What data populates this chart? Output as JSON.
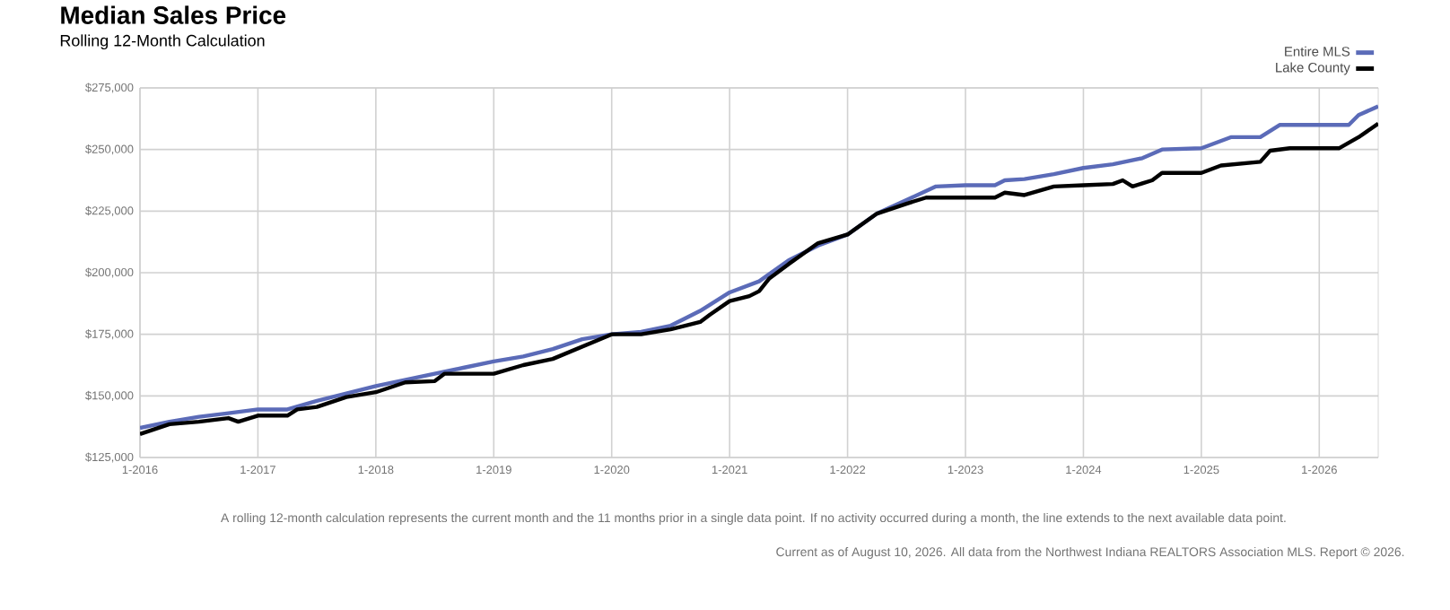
{
  "chart_data": {
    "type": "line",
    "title": "Median Sales Price",
    "subtitle": "Rolling 12-Month Calculation",
    "series": [
      {
        "name": "Entire MLS",
        "color": "#5b6bb8",
        "x": [
          "2016-01",
          "2016-04",
          "2016-07",
          "2016-10",
          "2017-01",
          "2017-04",
          "2017-07",
          "2017-10",
          "2018-01",
          "2018-04",
          "2018-07",
          "2018-10",
          "2019-01",
          "2019-04",
          "2019-07",
          "2019-10",
          "2020-01",
          "2020-04",
          "2020-07",
          "2020-10",
          "2021-01",
          "2021-04",
          "2021-07",
          "2021-10",
          "2022-01",
          "2022-04",
          "2022-07",
          "2022-10",
          "2023-01",
          "2023-04",
          "2023-05",
          "2023-07",
          "2023-10",
          "2024-01",
          "2024-04",
          "2024-07",
          "2024-09",
          "2025-01",
          "2025-04",
          "2025-07",
          "2025-09",
          "2026-01",
          "2026-04",
          "2026-05",
          "2026-07"
        ],
        "values": [
          137000,
          139500,
          141500,
          143000,
          144500,
          144500,
          148000,
          151000,
          154000,
          156500,
          159000,
          161500,
          164000,
          166000,
          169000,
          173000,
          175000,
          176000,
          178500,
          184500,
          192000,
          196500,
          205000,
          211000,
          215500,
          224000,
          229500,
          235000,
          235500,
          235500,
          237500,
          238000,
          240000,
          242500,
          244000,
          246500,
          250000,
          250500,
          255000,
          255000,
          260000,
          260000,
          260000,
          264000,
          267500
        ]
      },
      {
        "name": "Lake County",
        "color": "#000000",
        "x": [
          "2016-01",
          "2016-04",
          "2016-07",
          "2016-10",
          "2016-11",
          "2017-01",
          "2017-04",
          "2017-05",
          "2017-07",
          "2017-10",
          "2018-01",
          "2018-04",
          "2018-07",
          "2018-08",
          "2019-01",
          "2019-04",
          "2019-07",
          "2019-10",
          "2020-01",
          "2020-04",
          "2020-07",
          "2020-10",
          "2020-11",
          "2021-01",
          "2021-03",
          "2021-04",
          "2021-05",
          "2021-07",
          "2021-10",
          "2022-01",
          "2022-04",
          "2022-07",
          "2022-09",
          "2023-01",
          "2023-04",
          "2023-05",
          "2023-07",
          "2023-10",
          "2024-01",
          "2024-04",
          "2024-05",
          "2024-06",
          "2024-08",
          "2024-09",
          "2025-01",
          "2025-03",
          "2025-07",
          "2025-08",
          "2025-10",
          "2026-03",
          "2026-05",
          "2026-07"
        ],
        "values": [
          134500,
          138500,
          139500,
          141000,
          139500,
          142000,
          142000,
          144500,
          145500,
          149500,
          151500,
          155500,
          156000,
          159000,
          159000,
          162500,
          165000,
          170000,
          175000,
          175000,
          177000,
          180000,
          183000,
          188500,
          190500,
          192500,
          197500,
          203500,
          212000,
          215500,
          224000,
          228000,
          230500,
          230500,
          230500,
          232500,
          231500,
          235000,
          235500,
          236000,
          237500,
          235000,
          237500,
          240500,
          240500,
          243500,
          245000,
          249500,
          250500,
          250500,
          255000,
          260500
        ]
      }
    ],
    "xlim": [
      "2016-01",
      "2026-07"
    ],
    "xticks": [
      {
        "value": "2016-01",
        "label": "1-2016"
      },
      {
        "value": "2017-01",
        "label": "1-2017"
      },
      {
        "value": "2018-01",
        "label": "1-2018"
      },
      {
        "value": "2019-01",
        "label": "1-2019"
      },
      {
        "value": "2020-01",
        "label": "1-2020"
      },
      {
        "value": "2021-01",
        "label": "1-2021"
      },
      {
        "value": "2022-01",
        "label": "1-2022"
      },
      {
        "value": "2023-01",
        "label": "1-2023"
      },
      {
        "value": "2024-01",
        "label": "1-2024"
      },
      {
        "value": "2025-01",
        "label": "1-2025"
      },
      {
        "value": "2026-01",
        "label": "1-2026"
      }
    ],
    "ylim": [
      125000,
      275000
    ],
    "yticks": [
      {
        "value": 125000,
        "label": "$125,000"
      },
      {
        "value": 150000,
        "label": "$150,000"
      },
      {
        "value": 175000,
        "label": "$175,000"
      },
      {
        "value": 200000,
        "label": "$200,000"
      },
      {
        "value": 225000,
        "label": "$225,000"
      },
      {
        "value": 250000,
        "label": "$250,000"
      },
      {
        "value": 275000,
        "label": "$275,000"
      }
    ],
    "grid": true,
    "legend": "top right",
    "marker": "none",
    "line_style": "solid",
    "annotations": [
      "A rolling 12-month calculation represents the current month and the 11 months prior in a single data point. If no activity occurred during a month, the line extends to the next available data point.",
      "Current as of August 10, 2026. All data from the Northwest Indiana REALTORS Association MLS. Report © 2026."
    ]
  }
}
